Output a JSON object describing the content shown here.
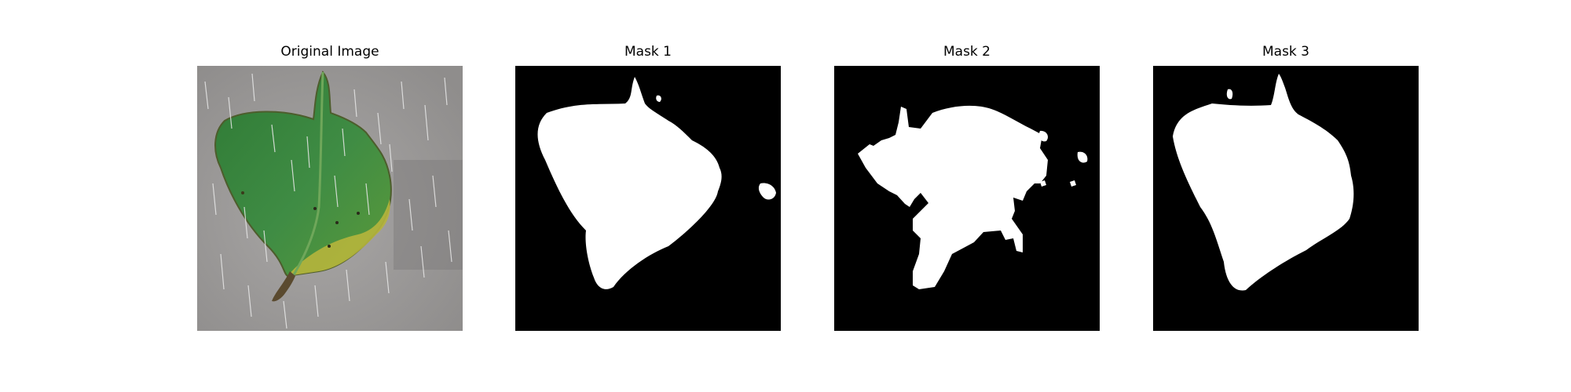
{
  "figure": {
    "panels": [
      {
        "title": "Original Image",
        "kind": "photo"
      },
      {
        "title": "Mask 1",
        "kind": "mask"
      },
      {
        "title": "Mask 2",
        "kind": "mask"
      },
      {
        "title": "Mask 3",
        "kind": "mask"
      }
    ],
    "colors": {
      "mask_background": "#000000",
      "mask_foreground": "#ffffff",
      "photo_background": "#9a9898",
      "leaf": "#3f8a3c",
      "leaf_edge_yellow": "#b9b93a"
    }
  }
}
